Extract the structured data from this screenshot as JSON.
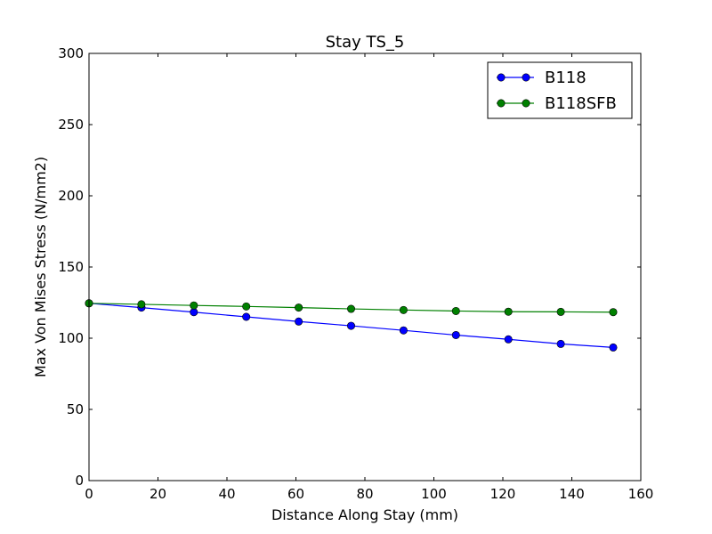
{
  "chart_data": {
    "type": "line",
    "title": "Stay TS_5",
    "xlabel": "Distance Along Stay (mm)",
    "ylabel": "Max Von Mises Stress (N/mm2)",
    "xlim": [
      0,
      160
    ],
    "ylim": [
      0,
      300
    ],
    "xticks": [
      0,
      20,
      40,
      60,
      80,
      100,
      120,
      140,
      160
    ],
    "yticks": [
      0,
      50,
      100,
      150,
      200,
      250,
      300
    ],
    "xtick_labels": [
      "0",
      "20",
      "40",
      "60",
      "80",
      "100",
      "120",
      "140",
      "160"
    ],
    "ytick_labels": [
      "0",
      "50",
      "100",
      "150",
      "200",
      "250",
      "300"
    ],
    "grid": false,
    "legend_position": "top-right",
    "series": [
      {
        "name": "B118",
        "color": "#0000ff",
        "marker": "circle",
        "x": [
          0,
          15.2,
          30.4,
          45.6,
          60.8,
          76.0,
          91.2,
          106.4,
          121.6,
          136.8,
          152.0
        ],
        "y": [
          124.5,
          121.5,
          118.3,
          115.0,
          111.7,
          108.7,
          105.5,
          102.2,
          99.2,
          96.0,
          93.5
        ]
      },
      {
        "name": "B118SFB",
        "color": "#008000",
        "marker": "circle",
        "x": [
          0,
          15.2,
          30.4,
          45.6,
          60.8,
          76.0,
          91.2,
          106.4,
          121.6,
          136.8,
          152.0
        ],
        "y": [
          124.5,
          123.8,
          123.0,
          122.3,
          121.5,
          120.6,
          119.8,
          119.1,
          118.6,
          118.5,
          118.3
        ]
      }
    ]
  }
}
